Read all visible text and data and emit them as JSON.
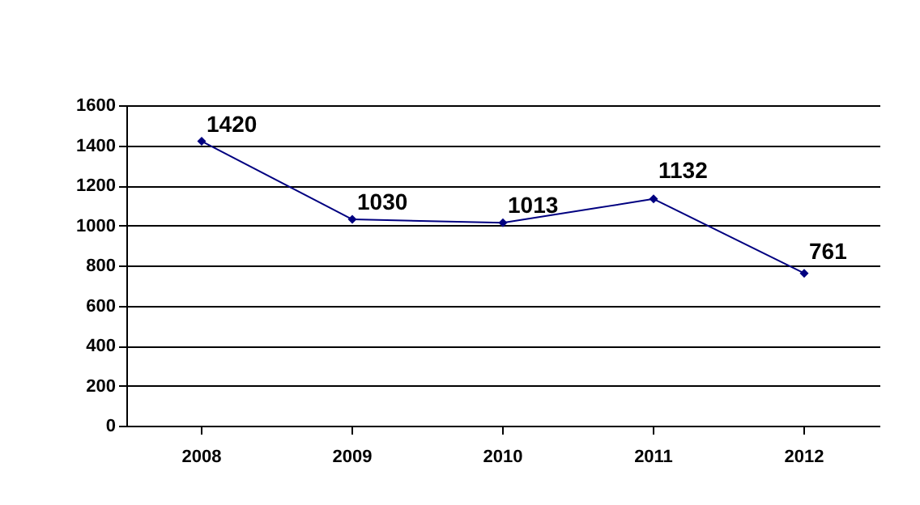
{
  "chart_data": {
    "type": "line",
    "categories": [
      "2008",
      "2009",
      "2010",
      "2011",
      "2012"
    ],
    "series": [
      {
        "color": "#000080",
        "values": [
          1420,
          1030,
          1013,
          1132,
          761
        ]
      }
    ],
    "ylim": [
      0,
      1600
    ],
    "yticks": [
      0,
      200,
      400,
      600,
      800,
      1000,
      1200,
      1400,
      1600
    ],
    "grid": "y",
    "marker": "diamond",
    "line_style": "solid",
    "data_labels": true
  }
}
